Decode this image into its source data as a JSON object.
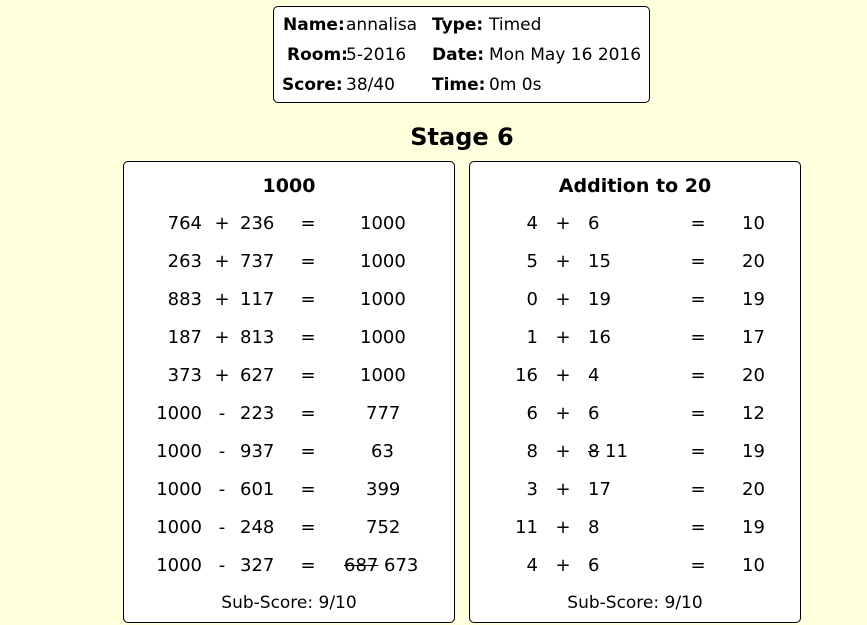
{
  "info": {
    "name_label": "Name:",
    "name_value": "annalisa",
    "type_label": "Type:",
    "type_value": "Timed",
    "room_label": "Room:",
    "room_value": "5-2016",
    "date_label": "Date:",
    "date_value": "Mon May 16 2016",
    "score_label": "Score:",
    "score_value": "38/40",
    "time_label": "Time:",
    "time_value": "0m 0s"
  },
  "stage_title": "Stage 6",
  "panels": [
    {
      "title": "1000",
      "subscore": "Sub-Score: 9/10",
      "rows": [
        {
          "a": "764",
          "op": "+",
          "b": "236",
          "eq": "=",
          "answer": "1000",
          "wrong": "",
          "correct": ""
        },
        {
          "a": "263",
          "op": "+",
          "b": "737",
          "eq": "=",
          "answer": "1000",
          "wrong": "",
          "correct": ""
        },
        {
          "a": "883",
          "op": "+",
          "b": "117",
          "eq": "=",
          "answer": "1000",
          "wrong": "",
          "correct": ""
        },
        {
          "a": "187",
          "op": "+",
          "b": "813",
          "eq": "=",
          "answer": "1000",
          "wrong": "",
          "correct": ""
        },
        {
          "a": "373",
          "op": "+",
          "b": "627",
          "eq": "=",
          "answer": "1000",
          "wrong": "",
          "correct": ""
        },
        {
          "a": "1000",
          "op": "-",
          "b": "223",
          "eq": "=",
          "answer": "777",
          "wrong": "",
          "correct": ""
        },
        {
          "a": "1000",
          "op": "-",
          "b": "937",
          "eq": "=",
          "answer": "63",
          "wrong": "",
          "correct": ""
        },
        {
          "a": "1000",
          "op": "-",
          "b": "601",
          "eq": "=",
          "answer": "399",
          "wrong": "",
          "correct": ""
        },
        {
          "a": "1000",
          "op": "-",
          "b": "248",
          "eq": "=",
          "answer": "752",
          "wrong": "",
          "correct": ""
        },
        {
          "a": "1000",
          "op": "-",
          "b": "327",
          "eq": "=",
          "answer": "",
          "wrong": "687",
          "correct": "673"
        }
      ]
    },
    {
      "title": "Addition to 20",
      "subscore": "Sub-Score: 9/10",
      "rows": [
        {
          "a": "4",
          "op": "+",
          "b": "6",
          "b_wrong": "",
          "b_correct": "",
          "eq": "=",
          "answer": "10"
        },
        {
          "a": "5",
          "op": "+",
          "b": "15",
          "b_wrong": "",
          "b_correct": "",
          "eq": "=",
          "answer": "20"
        },
        {
          "a": "0",
          "op": "+",
          "b": "19",
          "b_wrong": "",
          "b_correct": "",
          "eq": "=",
          "answer": "19"
        },
        {
          "a": "1",
          "op": "+",
          "b": "16",
          "b_wrong": "",
          "b_correct": "",
          "eq": "=",
          "answer": "17"
        },
        {
          "a": "16",
          "op": "+",
          "b": "4",
          "b_wrong": "",
          "b_correct": "",
          "eq": "=",
          "answer": "20"
        },
        {
          "a": "6",
          "op": "+",
          "b": "6",
          "b_wrong": "",
          "b_correct": "",
          "eq": "=",
          "answer": "12"
        },
        {
          "a": "8",
          "op": "+",
          "b": "",
          "b_wrong": "8",
          "b_correct": "11",
          "eq": "=",
          "answer": "19"
        },
        {
          "a": "3",
          "op": "+",
          "b": "17",
          "b_wrong": "",
          "b_correct": "",
          "eq": "=",
          "answer": "20"
        },
        {
          "a": "11",
          "op": "+",
          "b": "8",
          "b_wrong": "",
          "b_correct": "",
          "eq": "=",
          "answer": "19"
        },
        {
          "a": "4",
          "op": "+",
          "b": "6",
          "b_wrong": "",
          "b_correct": "",
          "eq": "=",
          "answer": "10"
        }
      ]
    }
  ]
}
